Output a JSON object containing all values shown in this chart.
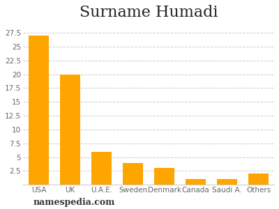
{
  "title": "Surname Humadi",
  "categories": [
    "USA",
    "UK",
    "U.A.E.",
    "Sweden",
    "Denmark",
    "Canada",
    "Saudi A.",
    "Others"
  ],
  "values": [
    27,
    20,
    6,
    4,
    3,
    1,
    1,
    2
  ],
  "bar_color": "#FFA500",
  "ylim": [
    0,
    29
  ],
  "yticks": [
    2.5,
    5,
    7.5,
    10,
    12.5,
    15,
    17.5,
    20,
    22.5,
    25,
    27.5
  ],
  "ytick_labels": [
    "2.5",
    "5",
    "7.5",
    "10",
    "12.5",
    "15",
    "17.5",
    "20",
    "22.5",
    "25",
    "27.5"
  ],
  "grid_color": "#cccccc",
  "background_color": "#ffffff",
  "title_fontsize": 16,
  "tick_fontsize": 7.5,
  "watermark": "namespedia.com",
  "watermark_fontsize": 9
}
